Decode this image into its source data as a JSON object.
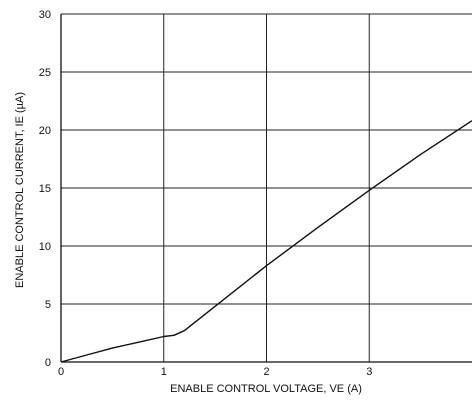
{
  "chart_data": {
    "type": "line",
    "title": "",
    "xlabel": "ENABLE CONTROL VOLTAGE, VE (A)",
    "ylabel": "ENABLE CONTROL CURRENT, IE (µA)",
    "xlim": [
      0,
      4
    ],
    "ylim": [
      0,
      30
    ],
    "x_ticks": [
      "0",
      "1",
      "2",
      "3"
    ],
    "y_ticks": [
      "0",
      "5",
      "10",
      "15",
      "20",
      "25",
      "30"
    ],
    "grid": true,
    "colors": {
      "line": "#111111",
      "grid": "#222222",
      "axis": "#111111"
    },
    "series": [
      {
        "x": [
          0,
          0.25,
          0.5,
          0.75,
          1.0,
          1.1,
          1.2,
          1.5,
          2.0,
          2.5,
          3.0,
          3.5,
          4.0
        ],
        "values": [
          0,
          0.6,
          1.2,
          1.7,
          2.2,
          2.3,
          2.7,
          4.8,
          8.3,
          11.6,
          14.8,
          17.9,
          20.8
        ]
      }
    ]
  }
}
